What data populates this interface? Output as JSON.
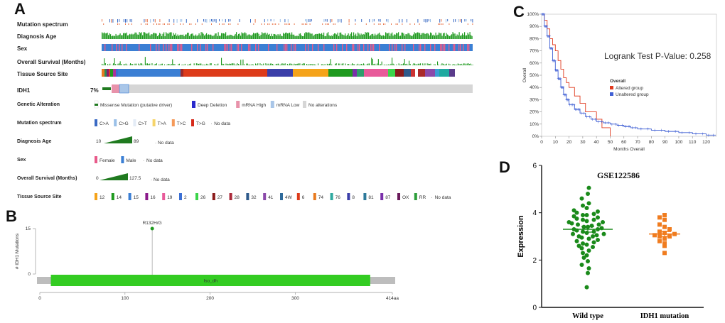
{
  "panel_labels": {
    "a": "A",
    "b": "B",
    "c": "C",
    "d": "D"
  },
  "colors": {
    "green": "#1f9a1f",
    "blue": "#4a7fd4",
    "pink": "#e892aa",
    "grey": "#d6d6d6",
    "lightblue": "#a9c6e8",
    "red": "#e03a1e",
    "orange": "#f07c1f",
    "lollipop": "#33cc22"
  },
  "panelA": {
    "tracks": [
      {
        "name": "Mutation spectrum"
      },
      {
        "name": "Diagnosis Age"
      },
      {
        "name": "Sex"
      },
      {
        "name": "Overall Survival (Months)"
      },
      {
        "name": "Tissue Source Site"
      }
    ],
    "gene": {
      "name": "IDH1",
      "pct": "7%"
    },
    "tissue_segments": [
      {
        "w": 4,
        "c": "#e87b1f"
      },
      {
        "w": 3,
        "c": "#2e8b57"
      },
      {
        "w": 3,
        "c": "#8b1a6b"
      },
      {
        "w": 2,
        "c": "#dd3b2a"
      },
      {
        "w": 4,
        "c": "#1f9a1f"
      },
      {
        "w": 4,
        "c": "#aa3399"
      },
      {
        "w": 3,
        "c": "#3b6fd4"
      },
      {
        "w": 88,
        "c": "#3b7fd4"
      },
      {
        "w": 4,
        "c": "#9b2a2a"
      },
      {
        "w": 118,
        "c": "#dd3b1a"
      },
      {
        "w": 36,
        "c": "#3b3fa9"
      },
      {
        "w": 50,
        "c": "#f5a31a"
      },
      {
        "w": 34,
        "c": "#1f9a1f"
      },
      {
        "w": 6,
        "c": "#7a2faa"
      },
      {
        "w": 10,
        "c": "#2e9e6b"
      },
      {
        "w": 34,
        "c": "#e85a9a"
      },
      {
        "w": 10,
        "c": "#3bd44a"
      },
      {
        "w": 12,
        "c": "#8b1a1a"
      },
      {
        "w": 10,
        "c": "#2e5a8b"
      },
      {
        "w": 6,
        "c": "#cc3333"
      },
      {
        "w": 4,
        "c": "#ffffff"
      },
      {
        "w": 10,
        "c": "#aa2a2a"
      },
      {
        "w": 14,
        "c": "#8b4aaa"
      },
      {
        "w": 6,
        "c": "#3b9ed4"
      },
      {
        "w": 14,
        "c": "#1fa9a0"
      },
      {
        "w": 8,
        "c": "#5a3b8b"
      }
    ],
    "legend_sections": [
      {
        "title": "Genetic Alteration",
        "items": [
          {
            "label": "Missense Mutation (putative driver)",
            "swatch": "missense"
          },
          {
            "label": "Deep Deletion",
            "swatch": "#2a2acc"
          },
          {
            "label": "mRNA High",
            "swatch": "#e892aa"
          },
          {
            "label": "mRNA Low",
            "swatch": "#a9c6e8"
          },
          {
            "label": "No alterations",
            "swatch": "#d6d6d6"
          }
        ]
      },
      {
        "title": "Mutation spectrum",
        "items": [
          {
            "label": "C>A",
            "swatch": "#3a6ac4"
          },
          {
            "label": "C>G",
            "swatch": "#9ac0e8"
          },
          {
            "label": "C>T",
            "swatch": "#e4ecf6"
          },
          {
            "label": "T>A",
            "swatch": "#f6d46a"
          },
          {
            "label": "T>C",
            "swatch": "#f59a5a"
          },
          {
            "label": "T>G",
            "swatch": "#d62a1a"
          },
          {
            "label": "No data",
            "swatch": "none"
          }
        ]
      },
      {
        "title": "Diagnosis Age",
        "gradient": true,
        "min": "10",
        "max": "89",
        "nodata": "No data"
      },
      {
        "title": "Sex",
        "items": [
          {
            "label": "Female",
            "swatch": "#e85a8a"
          },
          {
            "label": "Male",
            "swatch": "#3b7fd4"
          },
          {
            "label": "No data",
            "swatch": "none"
          }
        ]
      },
      {
        "title": "Overall Survival (Months)",
        "gradient": true,
        "min": "0",
        "max": "127.5",
        "nodata": "No data"
      },
      {
        "title": "Tissue Source Site",
        "items": [
          {
            "label": "12",
            "swatch": "#f5a31a"
          },
          {
            "label": "14",
            "swatch": "#1f9a1f"
          },
          {
            "label": "15",
            "swatch": "#3b7fd4"
          },
          {
            "label": "16",
            "swatch": "#8b1a8b"
          },
          {
            "label": "19",
            "swatch": "#e85a9a"
          },
          {
            "label": "2",
            "swatch": "#3b6fd4"
          },
          {
            "label": "26",
            "swatch": "#3bd44a"
          },
          {
            "label": "27",
            "swatch": "#8b1a1a"
          },
          {
            "label": "28",
            "swatch": "#aa2a3a"
          },
          {
            "label": "32",
            "swatch": "#2e5a8b"
          },
          {
            "label": "41",
            "swatch": "#8b4aaa"
          },
          {
            "label": "4W",
            "swatch": "#2e6a9b"
          },
          {
            "label": "6",
            "swatch": "#dd3b1a"
          },
          {
            "label": "74",
            "swatch": "#e87b1f"
          },
          {
            "label": "76",
            "swatch": "#2ea9a0"
          },
          {
            "label": "8",
            "swatch": "#3b3fa9"
          },
          {
            "label": "81",
            "swatch": "#2e7a9b"
          },
          {
            "label": "87",
            "swatch": "#7a2faa"
          },
          {
            "label": "OX",
            "swatch": "#6a1a5a"
          },
          {
            "label": "RR",
            "swatch": "#2e9e3b"
          },
          {
            "label": "No data",
            "swatch": "none"
          }
        ]
      }
    ]
  },
  "panelB": {
    "ylabel": "# IDH1 Mutations",
    "yticks": [
      "15",
      "0"
    ],
    "xticks": [
      "0",
      "100",
      "200",
      "300",
      "414aa"
    ],
    "mutation": {
      "label": "R132H/G",
      "position": 132,
      "count": 15
    },
    "domain": {
      "name": "Iso_dh",
      "start": 13,
      "end": 388
    },
    "length": 414
  },
  "chart_data": [
    {
      "panel": "C",
      "type": "line",
      "title": "Logrank Test P-Value: 0.258",
      "xlabel": "Months Overall",
      "ylabel": "Overall",
      "xlim": [
        0,
        127.5
      ],
      "ylim": [
        0,
        100
      ],
      "xticks": [
        0,
        10,
        20,
        30,
        40,
        50,
        60,
        70,
        80,
        90,
        100,
        110,
        120
      ],
      "yticks": [
        "0%",
        "10%",
        "20%",
        "30%",
        "40%",
        "50%",
        "60%",
        "70%",
        "80%",
        "90%",
        "100%"
      ],
      "legend_title": "Overall",
      "legend_position": "right",
      "series": [
        {
          "name": "Altered group",
          "color": "#e03a1e",
          "step": true,
          "x": [
            0,
            2,
            4,
            6,
            8,
            10,
            12,
            14,
            16,
            18,
            20,
            24,
            28,
            32,
            36,
            40,
            44,
            50,
            50
          ],
          "y": [
            100,
            95,
            88,
            80,
            75,
            70,
            62,
            55,
            48,
            44,
            40,
            33,
            27,
            20,
            20,
            14,
            7,
            7,
            0
          ]
        },
        {
          "name": "Unaltered group",
          "color": "#3f5fd4",
          "step": true,
          "x": [
            0,
            2,
            4,
            6,
            8,
            10,
            12,
            14,
            16,
            18,
            20,
            24,
            28,
            32,
            36,
            40,
            45,
            50,
            55,
            60,
            65,
            70,
            80,
            90,
            100,
            110,
            120,
            127
          ],
          "y": [
            100,
            90,
            82,
            72,
            62,
            54,
            47,
            40,
            34,
            30,
            26,
            22,
            19,
            16,
            14,
            12,
            11,
            10,
            9,
            8,
            7,
            6,
            5,
            4,
            3,
            2,
            1,
            1
          ]
        }
      ]
    },
    {
      "panel": "D",
      "type": "scatter",
      "title": "GSE122586",
      "xlabel": "",
      "ylabel": "Expression",
      "ylim": [
        0,
        6
      ],
      "yticks": [
        0,
        2,
        4,
        6
      ],
      "categories": [
        "Wild type",
        "IDH1 mutation"
      ],
      "series": [
        {
          "name": "Wild type",
          "color": "#1a8a1a",
          "marker": "circle",
          "mean": 3.3,
          "sem": 0.12,
          "values": [
            0.85,
            1.45,
            1.65,
            1.8,
            1.95,
            2.1,
            2.2,
            2.3,
            2.4,
            2.5,
            2.55,
            2.6,
            2.65,
            2.7,
            2.75,
            2.8,
            2.85,
            2.9,
            2.95,
            3.0,
            3.0,
            3.05,
            3.1,
            3.1,
            3.15,
            3.2,
            3.2,
            3.25,
            3.3,
            3.3,
            3.35,
            3.4,
            3.4,
            3.45,
            3.5,
            3.5,
            3.55,
            3.6,
            3.6,
            3.65,
            3.7,
            3.7,
            3.75,
            3.8,
            3.85,
            3.9,
            3.9,
            3.95,
            4.0,
            4.05,
            4.1,
            4.2,
            4.3,
            4.4,
            4.6,
            4.8,
            5.05
          ]
        },
        {
          "name": "IDH1 mutation",
          "color": "#f07c1f",
          "marker": "square",
          "mean": 3.1,
          "sem": 0.1,
          "values": [
            2.3,
            2.6,
            2.7,
            2.8,
            2.9,
            3.0,
            3.0,
            3.05,
            3.1,
            3.15,
            3.2,
            3.3,
            3.4,
            3.5,
            3.7,
            3.8,
            3.9
          ]
        }
      ]
    }
  ]
}
